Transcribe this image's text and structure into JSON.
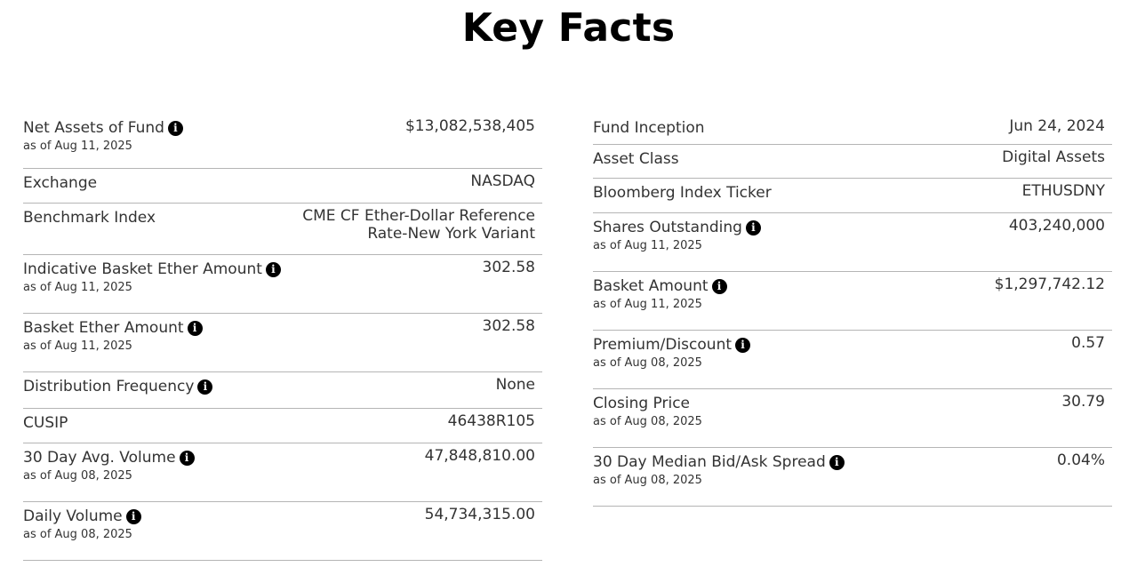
{
  "title": "Key Facts",
  "left": [
    {
      "label": "Net Assets of Fund",
      "info": true,
      "sub": "as of Aug 11, 2025",
      "value": "$13,082,538,405"
    },
    {
      "label": "Exchange",
      "info": false,
      "sub": "",
      "value": "NASDAQ"
    },
    {
      "label": "Benchmark Index",
      "info": false,
      "sub": "",
      "value_line1": "CME CF Ether-Dollar Reference",
      "value_line2": "Rate-New York Variant"
    },
    {
      "label": "Indicative Basket Ether Amount",
      "info": true,
      "sub": "as of Aug 11, 2025",
      "value": "302.58"
    },
    {
      "label": "Basket Ether Amount",
      "info": true,
      "sub": "as of Aug 11, 2025",
      "value": "302.58"
    },
    {
      "label": "Distribution Frequency",
      "info": true,
      "sub": "",
      "value": "None"
    },
    {
      "label": "CUSIP",
      "info": false,
      "sub": "",
      "value": "46438R105"
    },
    {
      "label": "30 Day Avg. Volume",
      "info": true,
      "sub": "as of Aug 08, 2025",
      "value": "47,848,810.00"
    },
    {
      "label": "Daily Volume",
      "info": true,
      "sub": "as of Aug 08, 2025",
      "value": "54,734,315.00"
    }
  ],
  "right": [
    {
      "label": "Fund Inception",
      "info": false,
      "sub": "",
      "value": "Jun 24, 2024"
    },
    {
      "label": "Asset Class",
      "info": false,
      "sub": "",
      "value": "Digital Assets"
    },
    {
      "label": "Bloomberg Index Ticker",
      "info": false,
      "sub": "",
      "value": "ETHUSDNY"
    },
    {
      "label": "Shares Outstanding",
      "info": true,
      "sub": "as of Aug 11, 2025",
      "value": "403,240,000"
    },
    {
      "label": "Basket Amount",
      "info": true,
      "sub": "as of Aug 11, 2025",
      "value": "$1,297,742.12"
    },
    {
      "label": "Premium/Discount",
      "info": true,
      "sub": "as of Aug 08, 2025",
      "value": "0.57"
    },
    {
      "label": "Closing Price",
      "info": false,
      "sub": "as of Aug 08, 2025",
      "value": "30.79"
    },
    {
      "label": "30 Day Median Bid/Ask Spread",
      "info": true,
      "sub": "as of Aug 08, 2025",
      "value": "0.04%"
    }
  ],
  "info_icon": "info-icon",
  "info_glyph": "i"
}
